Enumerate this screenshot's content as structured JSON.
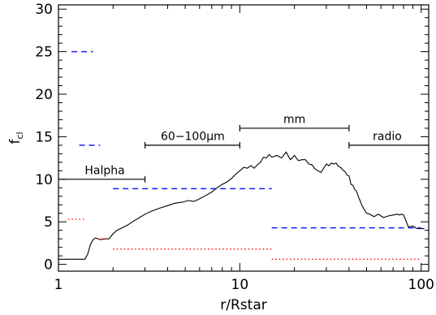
{
  "chart_data": {
    "type": "line",
    "xscale": "log",
    "xlim": [
      1,
      110
    ],
    "ylim": [
      -0.8,
      30.5
    ],
    "xlabel": "r/Rstar",
    "ylabel": "f",
    "ylabel_sub": "cl",
    "x_ticks": [
      1,
      10,
      100
    ],
    "x_tick_labels": [
      "1",
      "10",
      "100"
    ],
    "y_ticks": [
      0,
      5,
      10,
      15,
      20,
      25,
      30
    ],
    "y_tick_labels": [
      "0",
      "5",
      "10",
      "15",
      "20",
      "25",
      "30"
    ],
    "grid": false,
    "colors": {
      "line": "#000000",
      "dashed": "#1a1aff",
      "dotted": "#ff0000",
      "range": "#000000"
    },
    "series": [
      {
        "style": "solid",
        "x": [
          1.0,
          1.1,
          1.2,
          1.3,
          1.4,
          1.45,
          1.5,
          1.55,
          1.6,
          1.7,
          1.8,
          1.9,
          2.0,
          2.1,
          2.2,
          2.4,
          2.6,
          2.8,
          3.0,
          3.3,
          3.6,
          4.0,
          4.4,
          4.8,
          5.2,
          5.6,
          6.0,
          6.5,
          7.0,
          7.5,
          8.0,
          8.5,
          9.0,
          9.5,
          10.0,
          10.5,
          11.0,
          11.5,
          12.0,
          12.5,
          13.0,
          13.5,
          14.0,
          14.5,
          15.0,
          16.0,
          17.0,
          18.0,
          19.0,
          20.0,
          21.0,
          22.0,
          23.0,
          24.0,
          25.0,
          26.0,
          27.0,
          28.0,
          29.0,
          30.0,
          31.0,
          32.0,
          33.0,
          34.0,
          35.0,
          36.0,
          37.0,
          38.0,
          39.0,
          40.0,
          41.0,
          42.0,
          43.0,
          44.0,
          45.0,
          46.0,
          47.0,
          48.0,
          49.0,
          50.0,
          52.0,
          55.0,
          58.0,
          62.0,
          66.0,
          70.0,
          74.0,
          76.0,
          78.0,
          80.0,
          85.0,
          90.0,
          95.0,
          100.0,
          104.0
        ],
        "y": [
          0.6,
          0.6,
          0.6,
          0.6,
          0.6,
          1.2,
          2.3,
          2.9,
          3.1,
          2.9,
          3.0,
          3.0,
          3.6,
          4.0,
          4.2,
          4.6,
          5.1,
          5.5,
          5.9,
          6.3,
          6.6,
          6.9,
          7.2,
          7.3,
          7.5,
          7.4,
          7.7,
          8.1,
          8.5,
          9.0,
          9.4,
          9.7,
          10.1,
          10.6,
          11.0,
          11.4,
          11.3,
          11.6,
          11.3,
          11.7,
          12.0,
          12.6,
          12.5,
          12.9,
          12.6,
          12.8,
          12.5,
          13.2,
          12.3,
          12.8,
          12.2,
          12.3,
          12.3,
          11.8,
          11.7,
          11.2,
          11.0,
          10.8,
          11.3,
          11.8,
          11.6,
          11.9,
          11.8,
          11.9,
          11.5,
          11.4,
          11.1,
          10.9,
          10.5,
          10.4,
          9.4,
          9.3,
          8.8,
          8.6,
          8.0,
          7.5,
          7.0,
          6.6,
          6.3,
          6.0,
          5.9,
          5.6,
          5.9,
          5.5,
          5.7,
          5.8,
          5.9,
          5.8,
          5.9,
          5.8,
          4.4,
          4.5,
          4.2,
          4.2,
          4.2
        ]
      },
      {
        "style": "dashed",
        "x": [
          1.18,
          1.55
        ],
        "y": [
          25,
          25
        ]
      },
      {
        "style": "dashed",
        "x": [
          1.3,
          1.7
        ],
        "y": [
          14,
          14
        ]
      },
      {
        "style": "dashed",
        "x": [
          2.0,
          15.0
        ],
        "y": [
          8.9,
          8.9
        ]
      },
      {
        "style": "dashed",
        "x": [
          15.0,
          100.0
        ],
        "y": [
          4.3,
          4.3
        ]
      },
      {
        "style": "dotted",
        "x": [
          1.13,
          1.4
        ],
        "y": [
          5.3,
          5.3
        ]
      },
      {
        "style": "dotted",
        "x": [
          1.65,
          1.9
        ],
        "y": [
          3.0,
          3.0
        ]
      },
      {
        "style": "dotted",
        "x": [
          2.0,
          15.0
        ],
        "y": [
          1.8,
          1.8
        ]
      },
      {
        "style": "dotted",
        "x": [
          15.0,
          100.0
        ],
        "y": [
          0.6,
          0.6
        ]
      }
    ],
    "annotations": [
      {
        "label": "Halpha",
        "x_start": 1.0,
        "x_end": 3.0,
        "y": 10,
        "label_x": 1.8,
        "label_y": 10.6
      },
      {
        "label": "60−100μm",
        "x_start": 3.0,
        "x_end": 10.0,
        "y": 14,
        "label_x": 5.5,
        "label_y": 14.6
      },
      {
        "label": "mm",
        "x_start": 10.0,
        "x_end": 40.0,
        "y": 16,
        "label_x": 20.0,
        "label_y": 16.6
      },
      {
        "label": "radio",
        "x_start": 40.0,
        "x_end": 110.0,
        "y": 14,
        "label_x": 65.0,
        "label_y": 14.6
      }
    ]
  }
}
